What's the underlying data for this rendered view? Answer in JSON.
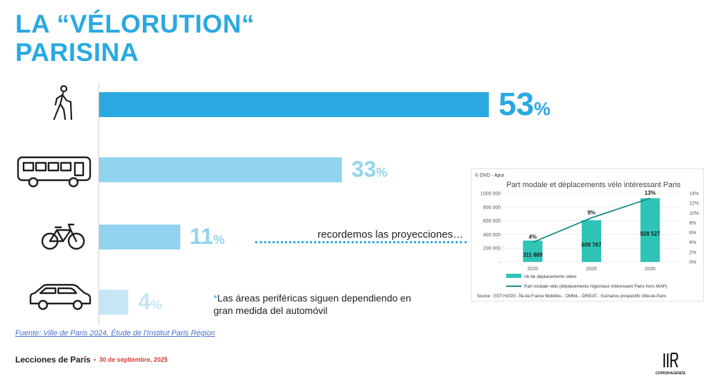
{
  "title": {
    "line1": "LA “VÉLORUTION“",
    "line2": "PARISINA"
  },
  "colors": {
    "accent": "#2aa9e0",
    "light": "#92d3ef",
    "lighter": "#c6e6f6",
    "teal": "#2ec4b6",
    "footer_date": "#d83a2e"
  },
  "chart_data": [
    {
      "type": "bar",
      "orientation": "horizontal",
      "categories": [
        "walking-icon",
        "bus-icon",
        "bicycle-icon",
        "car-icon"
      ],
      "values": [
        53,
        33,
        11,
        4
      ],
      "value_labels": [
        "53",
        "33",
        "11",
        "4"
      ],
      "unit": "%",
      "xlim": [
        0,
        60
      ]
    },
    {
      "type": "bar",
      "copyright": "© DVD - Apur",
      "title": "Part modale et déplacements vélo intéressant Paris",
      "categories": [
        "2020",
        "2026",
        "2030"
      ],
      "series": [
        {
          "name": "nb de déplacements vélos",
          "type": "bar",
          "values": [
            311889,
            609767,
            928527
          ],
          "labels": [
            "311 889",
            "609 767",
            "928 527"
          ]
        },
        {
          "name": "Part modale vélo (déplacements régionaux intéressant Paris hors MAP)",
          "type": "line",
          "axis": "right",
          "values": [
            4,
            9,
            13
          ],
          "labels": [
            "4%",
            "9%",
            "13%"
          ]
        }
      ],
      "y_ticks": [
        "-",
        "200 000",
        "400 000",
        "600 000",
        "800 000",
        "1000 000"
      ],
      "ylim": [
        0,
        1000000
      ],
      "y2_ticks": [
        "0%",
        "2%",
        "4%",
        "6%",
        "8%",
        "10%",
        "12%",
        "14%"
      ],
      "y2lim": [
        0,
        14
      ],
      "source": "Source : EGT H2020 - Île-de-France Mobilités - OMNIL - DRIEAT - Scénarios prospectifs Ville-de-Paris"
    }
  ],
  "recordemos": "recordemos las proyecciones…",
  "note": {
    "star": "*",
    "text": "Las áreas periféricas siguen dependiendo en gran medida del automóvil"
  },
  "source_link": "Fuente: Ville de Paris 2024, Étude de l'Institut Paris Région",
  "footer": {
    "title": "Lecciones de París",
    "bullet": "•",
    "date": "30 de septiembre, 2025"
  },
  "logo": {
    "text": "COPENHAGENIZE"
  }
}
